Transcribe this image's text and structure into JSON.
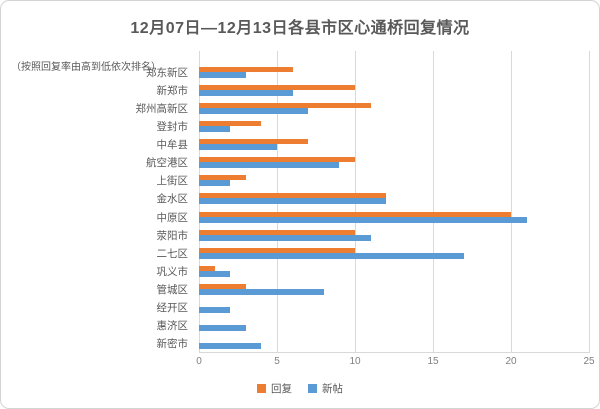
{
  "title": "12月07日—12月13日各县市区心通桥回复情况",
  "subtitle": "（按照回复率由高到低依次排名）",
  "colors": {
    "reply": "#ED7D31",
    "newpost": "#5B9BD5",
    "gridline": "#d9d9d9",
    "text": "#595959"
  },
  "chart_data": {
    "type": "bar",
    "orientation": "horizontal",
    "title": "12月07日—12月13日各县市区心通桥回复情况",
    "subtitle": "（按照回复率由高到低依次排名）",
    "categories": [
      "郑东新区",
      "新郑市",
      "郑州高新区",
      "登封市",
      "中牟县",
      "航空港区",
      "上街区",
      "金水区",
      "中原区",
      "荥阳市",
      "二七区",
      "巩义市",
      "管城区",
      "经开区",
      "惠济区",
      "新密市"
    ],
    "series": [
      {
        "name": "回复",
        "color": "#ED7D31",
        "values": [
          6,
          10,
          11,
          4,
          7,
          10,
          3,
          12,
          20,
          10,
          10,
          1,
          3,
          0,
          0,
          0
        ]
      },
      {
        "name": "新帖",
        "color": "#5B9BD5",
        "values": [
          3,
          6,
          7,
          2,
          5,
          9,
          2,
          12,
          21,
          11,
          17,
          2,
          8,
          2,
          3,
          4
        ]
      }
    ],
    "xlim": [
      0,
      25
    ],
    "xticks": [
      0,
      5,
      10,
      15,
      20,
      25
    ],
    "grid": true,
    "legend_position": "bottom"
  }
}
